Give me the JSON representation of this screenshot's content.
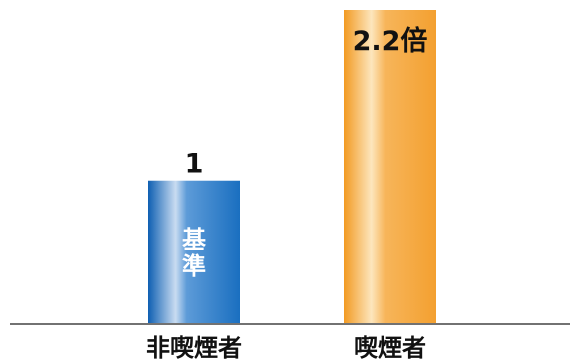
{
  "chart_data": {
    "type": "bar",
    "title": "",
    "xlabel": "",
    "ylabel": "",
    "categories": [
      "非喫煙者",
      "喫煙者"
    ],
    "values": [
      1,
      2.2
    ],
    "data_labels": [
      "1",
      "2.2倍"
    ],
    "bar_inner_labels": [
      "基準",
      ""
    ],
    "ylim": [
      0,
      2.2
    ],
    "grid": false,
    "legend": "none",
    "colors": [
      "#1f74c2",
      "#f5a032"
    ]
  }
}
